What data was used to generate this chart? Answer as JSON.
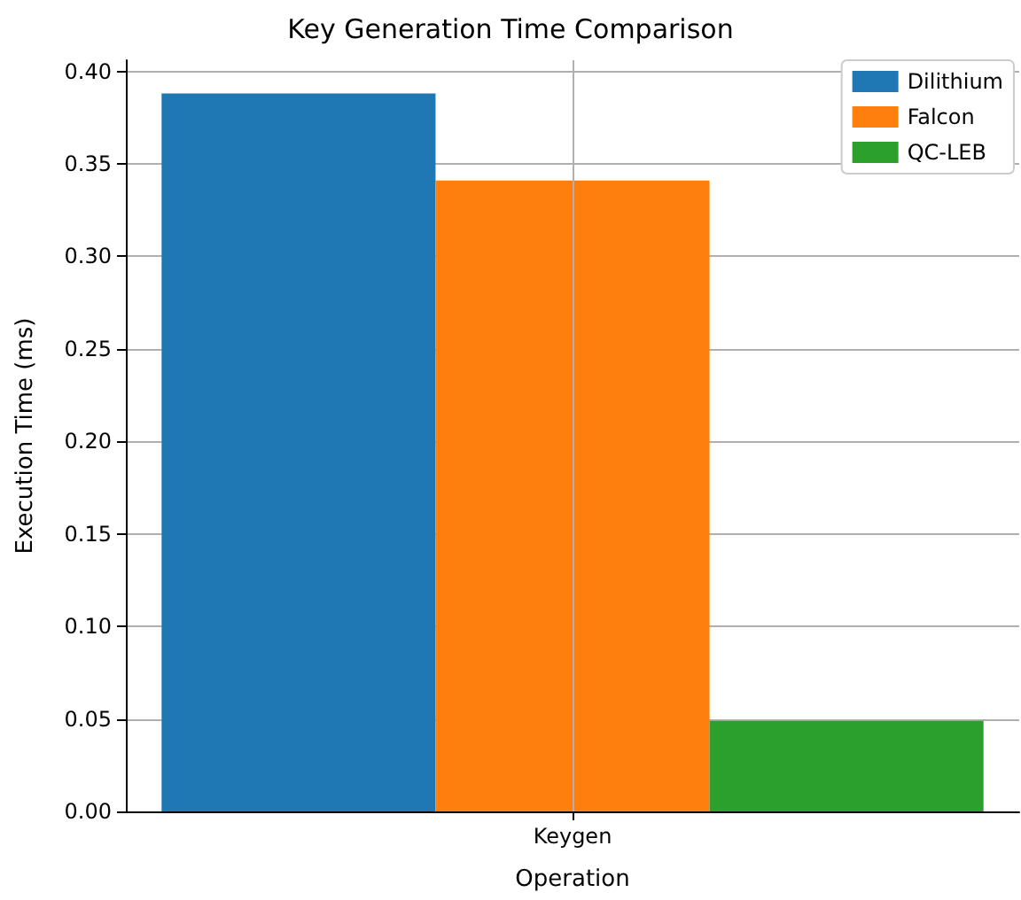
{
  "chart_data": {
    "type": "bar",
    "title": "Key Generation Time Comparison",
    "xlabel": "Operation",
    "ylabel": "Execution Time (ms)",
    "categories": [
      "Keygen"
    ],
    "series": [
      {
        "name": "Dilithium",
        "color": "#1f77b4",
        "values": [
          0.388
        ]
      },
      {
        "name": "Falcon",
        "color": "#ff7f0e",
        "values": [
          0.341
        ]
      },
      {
        "name": "QC-LEB",
        "color": "#2ca02c",
        "values": [
          0.049
        ]
      }
    ],
    "ylim": [
      0,
      0.406
    ],
    "yticks": [
      {
        "value": 0,
        "label": "0.00"
      },
      {
        "value": 0.05,
        "label": "0.05"
      },
      {
        "value": 0.1,
        "label": "0.10"
      },
      {
        "value": 0.15,
        "label": "0.15"
      },
      {
        "value": 0.2,
        "label": "0.20"
      },
      {
        "value": 0.25,
        "label": "0.25"
      },
      {
        "value": 0.3,
        "label": "0.30"
      },
      {
        "value": 0.35,
        "label": "0.35"
      },
      {
        "value": 0.4,
        "label": "0.40"
      }
    ],
    "grid": true,
    "legend": "top right"
  }
}
